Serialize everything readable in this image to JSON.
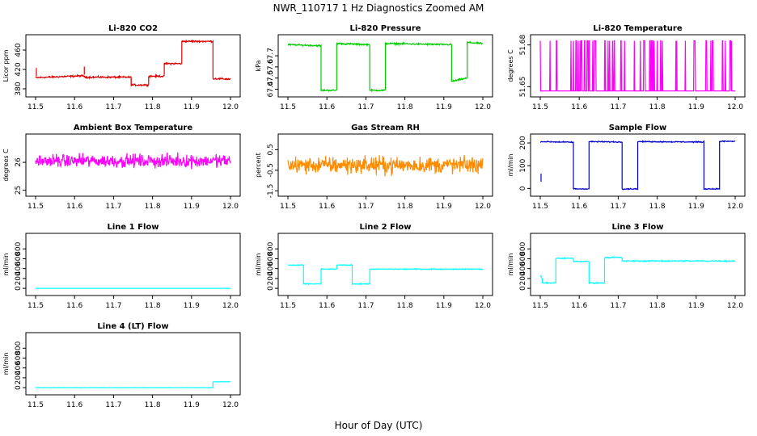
{
  "figure": {
    "title": "NWR_110717  1 Hz Diagnostics Zoomed AM",
    "xlabel": "Hour of Day (UTC)"
  },
  "chart_data": [
    {
      "type": "line",
      "title": "Li-820 CO2",
      "ylabel": "Licor ppm",
      "color": "#e00000",
      "xlim": [
        11.5,
        12.0
      ],
      "ylim": [
        370,
        485
      ],
      "xticks": [
        "11.5",
        "11.6",
        "11.7",
        "11.8",
        "11.9",
        "12.0"
      ],
      "yticks": [
        380,
        420,
        460
      ],
      "noise": 1.5,
      "segments": [
        {
          "x": [
            11.5,
            11.625
          ],
          "y": [
            403,
            407
          ]
        },
        {
          "x": [
            11.625,
            11.745
          ],
          "y": [
            404,
            404
          ]
        },
        {
          "x": [
            11.745,
            11.79
          ],
          "y": [
            388,
            388
          ]
        },
        {
          "x": [
            11.79,
            11.83
          ],
          "y": [
            406,
            406
          ]
        },
        {
          "x": [
            11.83,
            11.875
          ],
          "y": [
            432,
            432
          ]
        },
        {
          "x": [
            11.875,
            11.955
          ],
          "y": [
            478,
            478
          ]
        },
        {
          "x": [
            11.955,
            12.0
          ],
          "y": [
            401,
            400
          ]
        }
      ],
      "spikes": [
        {
          "x": 11.502,
          "y": 423
        },
        {
          "x": 11.625,
          "y": 426
        },
        {
          "x": 11.745,
          "y": 402
        }
      ]
    },
    {
      "type": "line",
      "title": "Li-820 Pressure",
      "ylabel": "kPa",
      "color": "#00cc00",
      "xlim": [
        11.5,
        12.0
      ],
      "ylim": [
        67.36,
        67.86
      ],
      "xticks": [
        "11.5",
        "11.6",
        "11.7",
        "11.8",
        "11.9",
        "12.0"
      ],
      "yticks": [
        67.4,
        67.5,
        67.6,
        67.7
      ],
      "noise": 0.006,
      "segments": [
        {
          "x": [
            11.5,
            11.585
          ],
          "y": [
            67.8,
            67.79
          ]
        },
        {
          "x": [
            11.585,
            11.625
          ],
          "y": [
            67.39,
            67.39
          ]
        },
        {
          "x": [
            11.625,
            11.71
          ],
          "y": [
            67.81,
            67.8
          ]
        },
        {
          "x": [
            11.71,
            11.75
          ],
          "y": [
            67.39,
            67.39
          ]
        },
        {
          "x": [
            11.75,
            11.92
          ],
          "y": [
            67.81,
            67.8
          ]
        },
        {
          "x": [
            11.92,
            11.96
          ],
          "y": [
            67.47,
            67.5
          ]
        },
        {
          "x": [
            11.96,
            12.0
          ],
          "y": [
            67.82,
            67.81
          ]
        }
      ]
    },
    {
      "type": "line",
      "title": "Li-820 Temperature",
      "ylabel": "degrees C",
      "color": "#ff00ff",
      "xlim": [
        11.5,
        12.0
      ],
      "ylim": [
        51.645,
        51.685
      ],
      "xticks": [
        "11.5",
        "11.6",
        "11.7",
        "11.8",
        "11.9",
        "12.0"
      ],
      "yticks": [
        51.65,
        51.68
      ],
      "levels": [
        51.647,
        51.683
      ],
      "flip_high": 0.5,
      "flip_low": 0.1
    },
    {
      "type": "line",
      "title": "Ambient Box Temperature",
      "ylabel": "degrees C",
      "color": "#ff00ff",
      "xlim": [
        11.5,
        12.0
      ],
      "ylim": [
        24.9,
        26.9
      ],
      "xticks": [
        "11.5",
        "11.6",
        "11.7",
        "11.8",
        "11.9",
        "12.0"
      ],
      "yticks": [
        25.0,
        26.0
      ],
      "noise": 0.2,
      "segments": [
        {
          "x": [
            11.5,
            12.0
          ],
          "y": [
            26.05,
            26.05
          ]
        }
      ]
    },
    {
      "type": "line",
      "title": "Gas Stream RH",
      "ylabel": "percent",
      "color": "#ff8c00",
      "xlim": [
        11.5,
        12.0
      ],
      "ylim": [
        -1.6,
        1.1
      ],
      "xticks": [
        "11.5",
        "11.6",
        "11.7",
        "11.8",
        "11.9",
        "12.0"
      ],
      "yticks": [
        -1.5,
        -0.5,
        0.5
      ],
      "noise": 0.35,
      "segments": [
        {
          "x": [
            11.5,
            12.0
          ],
          "y": [
            -0.25,
            -0.25
          ]
        }
      ]
    },
    {
      "type": "line",
      "title": "Sample Flow",
      "ylabel": "ml/min",
      "color": "#0000cc",
      "xlim": [
        11.5,
        12.0
      ],
      "ylim": [
        -20,
        225
      ],
      "xticks": [
        "11.5",
        "11.6",
        "11.7",
        "11.8",
        "11.9",
        "12.0"
      ],
      "yticks": [
        0,
        100,
        200
      ],
      "noise": 2,
      "segments": [
        {
          "x": [
            11.5,
            11.585
          ],
          "y": [
            206,
            203
          ]
        },
        {
          "x": [
            11.585,
            11.625
          ],
          "y": [
            -2,
            -2
          ]
        },
        {
          "x": [
            11.625,
            11.71
          ],
          "y": [
            206,
            204
          ]
        },
        {
          "x": [
            11.71,
            11.75
          ],
          "y": [
            -2,
            -2
          ]
        },
        {
          "x": [
            11.75,
            11.92
          ],
          "y": [
            206,
            204
          ]
        },
        {
          "x": [
            11.92,
            11.96
          ],
          "y": [
            -2,
            -2
          ]
        },
        {
          "x": [
            11.96,
            12.0
          ],
          "y": [
            207,
            207
          ]
        }
      ],
      "spikes": [
        {
          "x": 11.502,
          "y": 65
        }
      ]
    },
    {
      "type": "line",
      "title": "Line 1 Flow",
      "ylabel": "ml/min",
      "color": "#00ffff",
      "xlim": [
        11.5,
        12.0
      ],
      "ylim": [
        -80,
        1050
      ],
      "xticks": [
        "11.5",
        "11.6",
        "11.7",
        "11.8",
        "11.9",
        "12.0"
      ],
      "yticks": [
        0,
        200,
        400,
        600,
        800
      ],
      "segments": [
        {
          "x": [
            11.5,
            12.0
          ],
          "y": [
            0,
            0
          ]
        }
      ]
    },
    {
      "type": "line",
      "title": "Line 2 Flow",
      "ylabel": "ml/min",
      "color": "#00ffff",
      "xlim": [
        11.5,
        12.0
      ],
      "ylim": [
        -80,
        1050
      ],
      "xticks": [
        "11.5",
        "11.6",
        "11.7",
        "11.8",
        "11.9",
        "12.0"
      ],
      "yticks": [
        0,
        200,
        400,
        600,
        800
      ],
      "noise": 8,
      "segments": [
        {
          "x": [
            11.5,
            11.54
          ],
          "y": [
            470,
            470
          ]
        },
        {
          "x": [
            11.54,
            11.585
          ],
          "y": [
            90,
            90
          ]
        },
        {
          "x": [
            11.585,
            11.625
          ],
          "y": [
            390,
            390
          ]
        },
        {
          "x": [
            11.625,
            11.665
          ],
          "y": [
            470,
            470
          ]
        },
        {
          "x": [
            11.665,
            11.71
          ],
          "y": [
            90,
            90
          ]
        },
        {
          "x": [
            11.71,
            12.0
          ],
          "y": [
            390,
            390
          ]
        }
      ]
    },
    {
      "type": "line",
      "title": "Line 3 Flow",
      "ylabel": "ml/min",
      "color": "#00ffff",
      "xlim": [
        11.5,
        12.0
      ],
      "ylim": [
        -80,
        1050
      ],
      "xticks": [
        "11.5",
        "11.6",
        "11.7",
        "11.8",
        "11.9",
        "12.0"
      ],
      "yticks": [
        0,
        200,
        400,
        600,
        800
      ],
      "noise": 10,
      "segments": [
        {
          "x": [
            11.5,
            11.505
          ],
          "y": [
            260,
            200
          ]
        },
        {
          "x": [
            11.505,
            11.54
          ],
          "y": [
            110,
            110
          ]
        },
        {
          "x": [
            11.54,
            11.585
          ],
          "y": [
            610,
            610
          ]
        },
        {
          "x": [
            11.585,
            11.625
          ],
          "y": [
            545,
            545
          ]
        },
        {
          "x": [
            11.625,
            11.665
          ],
          "y": [
            110,
            110
          ]
        },
        {
          "x": [
            11.665,
            11.71
          ],
          "y": [
            625,
            625
          ]
        },
        {
          "x": [
            11.71,
            12.0
          ],
          "y": [
            555,
            555
          ]
        }
      ]
    },
    {
      "type": "line",
      "title": "Line 4 (LT) Flow",
      "ylabel": "ml/min",
      "color": "#00ffff",
      "xlim": [
        11.5,
        12.0
      ],
      "ylim": [
        -80,
        1050
      ],
      "xticks": [
        "11.5",
        "11.6",
        "11.7",
        "11.8",
        "11.9",
        "12.0"
      ],
      "yticks": [
        0,
        200,
        400,
        600,
        800
      ],
      "noise": 3,
      "segments": [
        {
          "x": [
            11.5,
            11.955
          ],
          "y": [
            0,
            0
          ]
        },
        {
          "x": [
            11.955,
            12.0
          ],
          "y": [
            120,
            120
          ]
        }
      ]
    }
  ]
}
